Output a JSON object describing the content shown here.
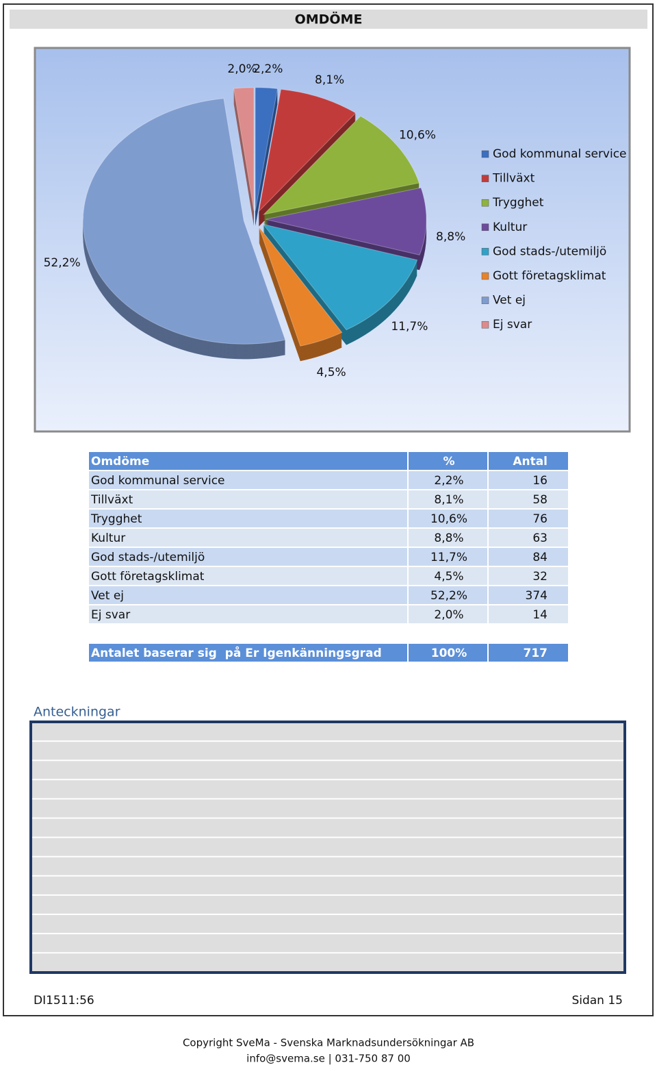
{
  "header": {
    "title": "OMDÖME"
  },
  "chart_data": {
    "type": "pie",
    "categories": [
      "God kommunal service",
      "Tillväxt",
      "Trygghet",
      "Kultur",
      "God stads-/utemiljö",
      "Gott företagsklimat",
      "Vet ej",
      "Ej svar"
    ],
    "values": [
      2.2,
      8.1,
      10.6,
      8.8,
      11.7,
      4.5,
      52.2,
      2.0
    ],
    "value_labels": [
      "2,2%",
      "8,1%",
      "10,6%",
      "8,8%",
      "11,7%",
      "4,5%",
      "52,2%",
      "2,0%"
    ],
    "colors": [
      "#3b6fc0",
      "#c23b3b",
      "#8fb33c",
      "#6c4b9c",
      "#2ea2c8",
      "#e8832a",
      "#7f9ccf",
      "#dc8c8c"
    ]
  },
  "table": {
    "columns": [
      "Omdöme",
      "%",
      "Antal"
    ],
    "rows": [
      [
        "God kommunal service",
        "2,2%",
        "16"
      ],
      [
        "Tillväxt",
        "8,1%",
        "58"
      ],
      [
        "Trygghet",
        "10,6%",
        "76"
      ],
      [
        "Kultur",
        "8,8%",
        "63"
      ],
      [
        "God stads-/utemiljö",
        "11,7%",
        "84"
      ],
      [
        "Gott företagsklimat",
        "4,5%",
        "32"
      ],
      [
        "Vet ej",
        "52,2%",
        "374"
      ],
      [
        "Ej svar",
        "2,0%",
        "14"
      ]
    ],
    "total": [
      "Antalet baserar sig  på Er Igenkänningsgrad",
      "100%",
      "717"
    ]
  },
  "notes": {
    "title": "Anteckningar"
  },
  "footer": {
    "left": "DI1511:56",
    "right": "Sidan 15",
    "copyright": "Copyright SveMa - Svenska Marknadsundersökningar AB",
    "contact": "info@svema.se | 031-750 87 00"
  }
}
